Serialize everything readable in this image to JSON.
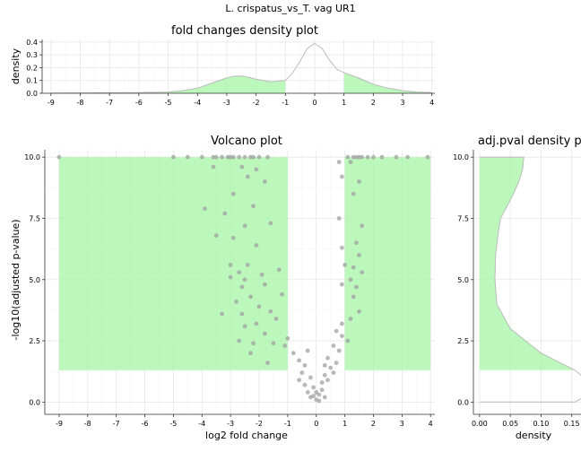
{
  "figure_title": "L. crispatus_vs_T. vag UR1",
  "chart_data": [
    {
      "id": "fold_density",
      "type": "area",
      "title": "fold changes density plot",
      "xlabel": "",
      "ylabel": "density",
      "xlim": [
        -9.3,
        4.1
      ],
      "ylim": [
        0,
        0.42
      ],
      "xticks": [
        -9,
        -8,
        -7,
        -6,
        -5,
        -4,
        -3,
        -2,
        -1,
        0,
        1,
        2,
        3,
        4
      ],
      "yticks": [
        0.0,
        0.1,
        0.2,
        0.3,
        0.4
      ],
      "ytick_labels": [
        "0.0",
        "0.1",
        "0.2",
        "0.3",
        "0.4"
      ],
      "grid": true,
      "highlight_threshold": [
        -1,
        1
      ],
      "x": [
        -9,
        -8,
        -7,
        -6,
        -5,
        -4.5,
        -4,
        -3.5,
        -3,
        -2.75,
        -2.5,
        -2.25,
        -2,
        -1.5,
        -1,
        -0.75,
        -0.5,
        -0.25,
        0,
        0.25,
        0.5,
        0.75,
        1,
        1.5,
        2,
        2.5,
        3,
        3.5,
        4
      ],
      "y": [
        0.002,
        0.003,
        0.004,
        0.005,
        0.01,
        0.02,
        0.04,
        0.08,
        0.12,
        0.133,
        0.135,
        0.125,
        0.11,
        0.09,
        0.1,
        0.16,
        0.25,
        0.35,
        0.39,
        0.35,
        0.26,
        0.19,
        0.16,
        0.12,
        0.07,
        0.04,
        0.02,
        0.01,
        0.005
      ]
    },
    {
      "id": "volcano",
      "type": "scatter",
      "title": "Volcano plot",
      "xlabel": "log2 fold change",
      "ylabel": "-log10(adjusted p-value)",
      "xlim": [
        -9.5,
        4.15
      ],
      "ylim": [
        -0.5,
        10.3
      ],
      "xticks": [
        -9,
        -8,
        -7,
        -6,
        -5,
        -4,
        -3,
        -2,
        -1,
        0,
        1,
        2,
        3,
        4
      ],
      "yticks": [
        0.0,
        2.5,
        5.0,
        7.5,
        10.0
      ],
      "ytick_labels": [
        "0.0",
        "2.5",
        "5.0",
        "7.5",
        "10.0"
      ],
      "grid": true,
      "highlight_regions": [
        {
          "x0": -9,
          "x1": -1,
          "y0": 1.3,
          "y1": 10
        },
        {
          "x0": 1,
          "x1": 4,
          "y0": 1.3,
          "y1": 10
        }
      ],
      "points": [
        [
          -9,
          10
        ],
        [
          -5,
          10
        ],
        [
          -4.5,
          10
        ],
        [
          -4,
          10
        ],
        [
          -3.6,
          10
        ],
        [
          -3.5,
          10
        ],
        [
          -3.3,
          10
        ],
        [
          -3.1,
          10
        ],
        [
          -3.0,
          10
        ],
        [
          -2.9,
          10
        ],
        [
          -2.7,
          10
        ],
        [
          -2.5,
          10
        ],
        [
          -2.3,
          10
        ],
        [
          -2.2,
          10
        ],
        [
          -2.0,
          10
        ],
        [
          -1.7,
          10
        ],
        [
          -3.6,
          9.6
        ],
        [
          -2.6,
          9.6
        ],
        [
          -2.4,
          9.2
        ],
        [
          -2.1,
          9.5
        ],
        [
          -1.8,
          9.0
        ],
        [
          -2.9,
          8.5
        ],
        [
          -3.9,
          7.9
        ],
        [
          -3.2,
          7.7
        ],
        [
          -2.2,
          8.0
        ],
        [
          -3.5,
          6.8
        ],
        [
          -2.5,
          7.2
        ],
        [
          -1.6,
          7.3
        ],
        [
          -2.9,
          6.7
        ],
        [
          -2.1,
          6.4
        ],
        [
          -3.0,
          5.6
        ],
        [
          -2.7,
          5.3
        ],
        [
          -2.4,
          5.6
        ],
        [
          -1.3,
          5.4
        ],
        [
          -3.0,
          5.1
        ],
        [
          -2.5,
          5.0
        ],
        [
          -1.9,
          5.2
        ],
        [
          -2.6,
          4.7
        ],
        [
          -1.8,
          4.8
        ],
        [
          -1.2,
          4.4
        ],
        [
          -2.3,
          4.3
        ],
        [
          -2.8,
          4.1
        ],
        [
          -2.0,
          3.9
        ],
        [
          -1.6,
          3.7
        ],
        [
          -2.6,
          3.6
        ],
        [
          -3.3,
          3.6
        ],
        [
          -1.4,
          3.4
        ],
        [
          -2.1,
          3.2
        ],
        [
          -2.5,
          3.1
        ],
        [
          -1.8,
          2.8
        ],
        [
          -2.7,
          2.5
        ],
        [
          -2.2,
          2.4
        ],
        [
          -1.5,
          2.4
        ],
        [
          -2.3,
          2.0
        ],
        [
          -1.7,
          1.6
        ],
        [
          -1.1,
          2.3
        ],
        [
          -1.0,
          2.6
        ],
        [
          -0.8,
          2.0
        ],
        [
          -0.6,
          1.7
        ],
        [
          -0.4,
          1.5
        ],
        [
          -0.3,
          2.1
        ],
        [
          -0.5,
          1.2
        ],
        [
          -0.6,
          0.9
        ],
        [
          -0.2,
          1.0
        ],
        [
          -0.4,
          0.7
        ],
        [
          -0.1,
          0.6
        ],
        [
          -0.3,
          0.4
        ],
        [
          -0.2,
          0.2
        ],
        [
          0.0,
          0.1
        ],
        [
          0.1,
          0.3
        ],
        [
          0.2,
          0.5
        ],
        [
          0.3,
          0.2
        ],
        [
          0.1,
          0.05
        ],
        [
          0.0,
          0.4
        ],
        [
          -0.1,
          0.25
        ],
        [
          0.2,
          0.8
        ],
        [
          0.3,
          1.1
        ],
        [
          0.4,
          0.9
        ],
        [
          0.5,
          1.4
        ],
        [
          0.6,
          1.2
        ],
        [
          0.7,
          1.6
        ],
        [
          0.8,
          2.1
        ],
        [
          0.4,
          1.8
        ],
        [
          0.6,
          2.3
        ],
        [
          0.9,
          2.7
        ],
        [
          0.7,
          2.9
        ],
        [
          0.9,
          3.2
        ],
        [
          0.3,
          1.5
        ],
        [
          0.9,
          4.8
        ],
        [
          1.0,
          5.6
        ],
        [
          0.9,
          6.3
        ],
        [
          0.8,
          7.5
        ],
        [
          0.9,
          9.2
        ],
        [
          0.8,
          9.8
        ],
        [
          1.1,
          10
        ],
        [
          1.3,
          10
        ],
        [
          1.4,
          10
        ],
        [
          1.5,
          10
        ],
        [
          1.6,
          10
        ],
        [
          1.8,
          10
        ],
        [
          2.0,
          10
        ],
        [
          2.3,
          10
        ],
        [
          2.8,
          10
        ],
        [
          3.2,
          10
        ],
        [
          3.9,
          10
        ],
        [
          1.2,
          9.8
        ],
        [
          1.5,
          9.0
        ],
        [
          1.3,
          8.5
        ],
        [
          1.6,
          7.2
        ],
        [
          1.4,
          6.5
        ],
        [
          1.5,
          6.0
        ],
        [
          1.3,
          5.5
        ],
        [
          1.6,
          5.3
        ],
        [
          1.2,
          5.0
        ],
        [
          1.4,
          4.7
        ],
        [
          1.3,
          4.3
        ],
        [
          1.5,
          3.7
        ],
        [
          1.2,
          3.4
        ],
        [
          1.1,
          2.5
        ]
      ]
    },
    {
      "id": "pval_density",
      "type": "area",
      "title": "adj.pval density plot",
      "xlabel": "density",
      "ylabel": "",
      "xlim": [
        -0.01,
        0.165
      ],
      "ylim": [
        -0.5,
        10.3
      ],
      "xticks": [
        0.0,
        0.05,
        0.1,
        0.15
      ],
      "xtick_labels": [
        "0.00",
        "0.05",
        "0.10",
        "0.15"
      ],
      "yticks": [
        0.0,
        2.5,
        5.0,
        7.5,
        10.0
      ],
      "ytick_labels": [
        "0.0",
        "2.5",
        "5.0",
        "7.5",
        "10.0"
      ],
      "grid": true,
      "highlight_threshold": 1.3,
      "y": [
        0,
        0.2,
        0.5,
        1.0,
        1.3,
        2.0,
        3.0,
        4.0,
        5.0,
        6.0,
        7.0,
        7.5,
        8.0,
        8.5,
        9.0,
        9.5,
        10.0
      ],
      "density": [
        0.155,
        0.17,
        0.18,
        0.17,
        0.155,
        0.1,
        0.05,
        0.028,
        0.025,
        0.026,
        0.031,
        0.034,
        0.045,
        0.055,
        0.064,
        0.07,
        0.072
      ]
    }
  ]
}
